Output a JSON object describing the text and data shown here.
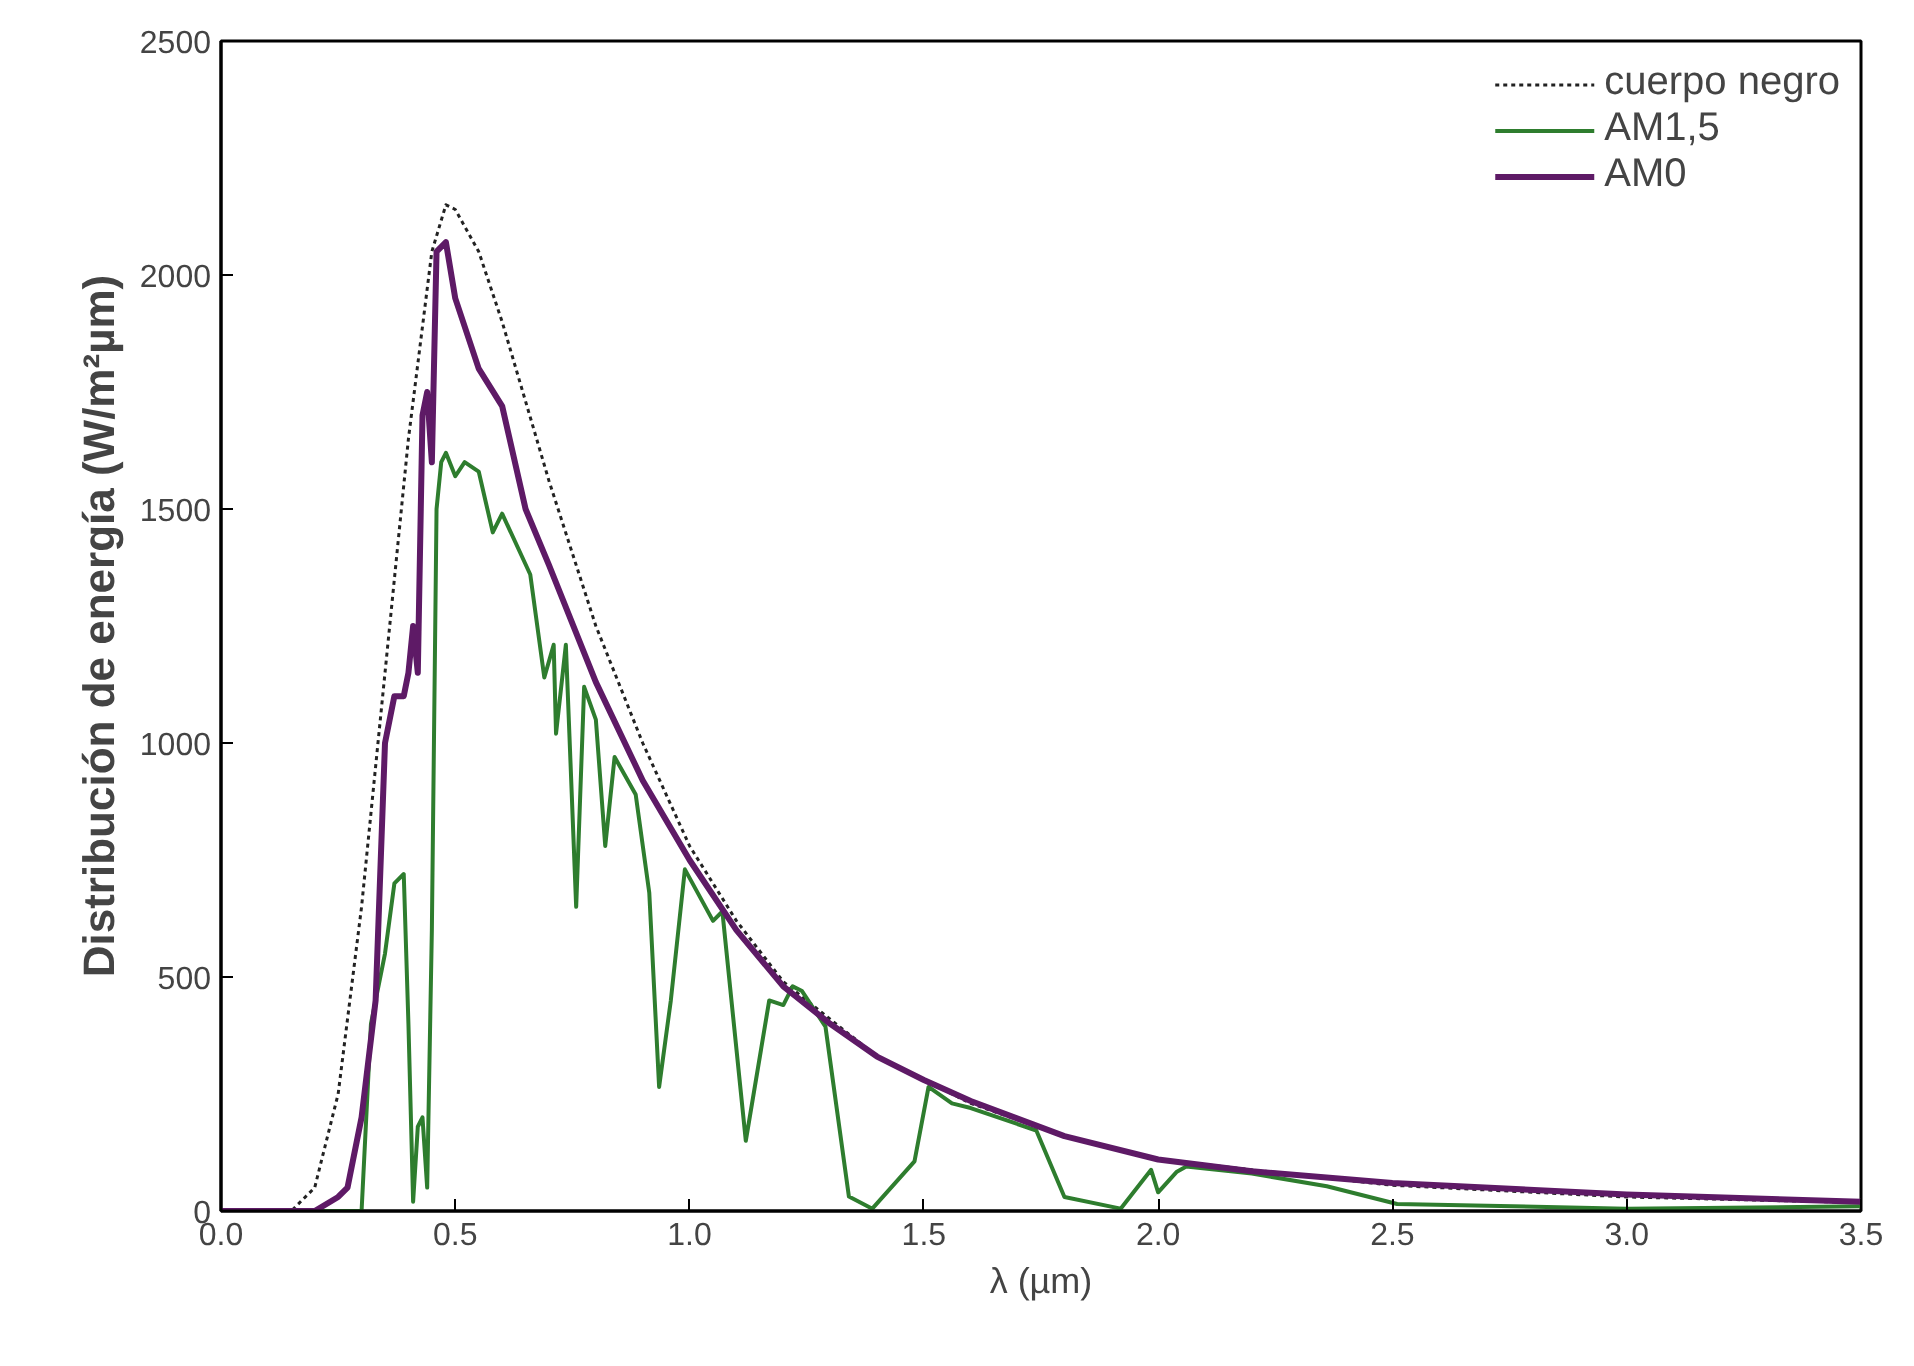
{
  "chart_data": {
    "type": "line",
    "xlabel": "λ (µm)",
    "ylabel": "Distribución de energía (W/m²µm)",
    "xlim": [
      0,
      3.5
    ],
    "ylim": [
      0,
      2500
    ],
    "xticks": [
      {
        "value": 0,
        "label": "0.0"
      },
      {
        "value": 0.5,
        "label": "0.5"
      },
      {
        "value": 1,
        "label": "1.0"
      },
      {
        "value": 1.5,
        "label": "1.5"
      },
      {
        "value": 2,
        "label": "2.0"
      },
      {
        "value": 2.5,
        "label": "2.5"
      },
      {
        "value": 3,
        "label": "3.0"
      },
      {
        "value": 3.5,
        "label": "3.5"
      }
    ],
    "yticks": [
      0,
      500,
      1000,
      1500,
      2000,
      2500
    ],
    "grid": false,
    "legend": "top right",
    "marker": "none",
    "series": [
      {
        "name": "cuerpo negro",
        "color": "#222222",
        "line_style": "dotted",
        "x": [
          0,
          0.15,
          0.2,
          0.25,
          0.3,
          0.35,
          0.4,
          0.45,
          0.48,
          0.5,
          0.55,
          0.6,
          0.7,
          0.8,
          0.9,
          1.0,
          1.1,
          1.2,
          1.4,
          1.6,
          1.8,
          2.0,
          2.5,
          3.0,
          3.5
        ],
        "values": [
          0,
          0,
          50,
          250,
          650,
          1150,
          1650,
          2050,
          2150,
          2140,
          2050,
          1900,
          1560,
          1250,
          1000,
          780,
          620,
          490,
          330,
          230,
          160,
          110,
          55,
          30,
          18
        ]
      },
      {
        "name": "AM1,5",
        "color": "#2e7d2e",
        "line_style": "solid",
        "x": [
          0,
          0.3,
          0.32,
          0.35,
          0.37,
          0.39,
          0.4,
          0.41,
          0.42,
          0.43,
          0.44,
          0.45,
          0.46,
          0.47,
          0.48,
          0.5,
          0.52,
          0.55,
          0.58,
          0.6,
          0.66,
          0.69,
          0.71,
          0.715,
          0.736,
          0.758,
          0.775,
          0.8,
          0.82,
          0.84,
          0.885,
          0.914,
          0.935,
          0.96,
          0.99,
          1.05,
          1.07,
          1.12,
          1.17,
          1.2,
          1.22,
          1.24,
          1.29,
          1.34,
          1.39,
          1.48,
          1.51,
          1.56,
          1.6,
          1.74,
          1.8,
          1.92,
          1.985,
          2.0,
          2.04,
          2.06,
          2.2,
          2.36,
          2.51,
          3.0,
          3.5
        ],
        "values": [
          0,
          0,
          400,
          550,
          700,
          720,
          400,
          20,
          180,
          200,
          50,
          600,
          1500,
          1600,
          1620,
          1570,
          1600,
          1580,
          1450,
          1490,
          1360,
          1140,
          1210,
          1020,
          1210,
          650,
          1120,
          1050,
          780,
          970,
          890,
          680,
          265,
          450,
          730,
          620,
          640,
          150,
          450,
          440,
          480,
          470,
          394,
          31,
          5,
          106,
          265,
          230,
          220,
          172,
          30,
          5,
          88,
          40,
          84,
          95,
          80,
          53,
          15,
          5,
          10
        ]
      },
      {
        "name": "AM0",
        "color": "#5e1a66",
        "line_style": "solid",
        "x": [
          0,
          0.2,
          0.25,
          0.27,
          0.3,
          0.33,
          0.35,
          0.37,
          0.39,
          0.4,
          0.41,
          0.42,
          0.43,
          0.44,
          0.45,
          0.46,
          0.48,
          0.5,
          0.55,
          0.6,
          0.65,
          0.7,
          0.8,
          0.9,
          1.0,
          1.1,
          1.2,
          1.3,
          1.4,
          1.5,
          1.6,
          1.8,
          2.0,
          2.2,
          2.5,
          3.0,
          3.5
        ],
        "values": [
          0,
          0,
          30,
          50,
          200,
          450,
          1000,
          1100,
          1100,
          1150,
          1250,
          1150,
          1700,
          1750,
          1600,
          2050,
          2070,
          1950,
          1800,
          1720,
          1500,
          1380,
          1130,
          920,
          750,
          600,
          480,
          400,
          330,
          280,
          235,
          160,
          110,
          85,
          60,
          35,
          20
        ]
      }
    ]
  }
}
